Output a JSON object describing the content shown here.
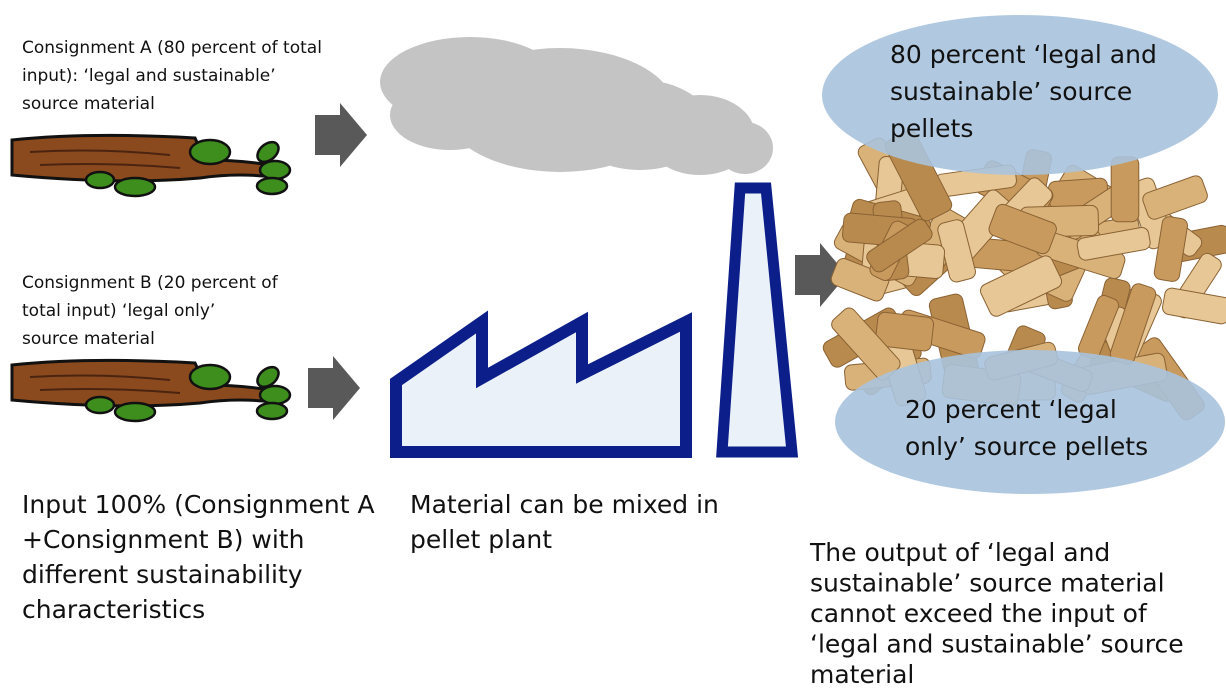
{
  "inputs": [
    {
      "lines": [
        "Consignment A (80 percent of total",
        "input): ‘legal and sustainable’",
        "source material"
      ]
    },
    {
      "lines": [
        "Consignment B (20 percent of",
        "total input) ‘legal only’",
        "source material"
      ]
    }
  ],
  "pellets": {
    "top": [
      "80 percent ‘legal and",
      "sustainable’ source",
      "pellets"
    ],
    "bottom": [
      "20 percent ‘legal",
      "only’ source pellets"
    ]
  },
  "captions": {
    "input": [
      "Input 100% (Consignment A",
      "+Consignment B) with",
      "different sustainability",
      "characteristics"
    ],
    "plant": [
      "Material can be mixed in",
      "pellet plant"
    ],
    "output": [
      "The output of ‘legal and",
      "sustainable’ source material",
      "cannot exceed the input of",
      "‘legal and sustainable’ source",
      "material"
    ]
  }
}
